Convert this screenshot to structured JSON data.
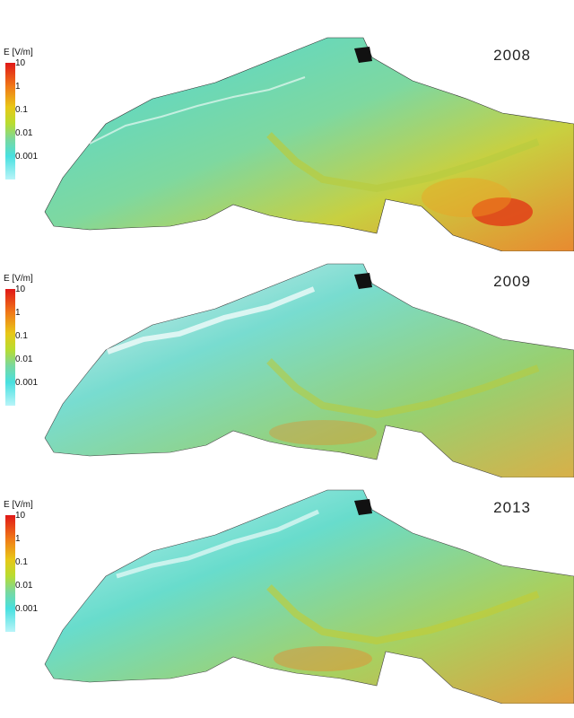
{
  "panels": [
    {
      "year": "2008",
      "intensity": 1.0
    },
    {
      "year": "2009",
      "intensity": 0.55
    },
    {
      "year": "2013",
      "intensity": 0.7
    }
  ],
  "legend": {
    "title": "E [V/m]",
    "ticks": [
      "10",
      "1",
      "0.1",
      "0.01",
      "0.001"
    ],
    "colors": [
      "#e01818",
      "#f07818",
      "#e8c818",
      "#b8dc30",
      "#48e0e0",
      "#b8f4f8"
    ]
  }
}
